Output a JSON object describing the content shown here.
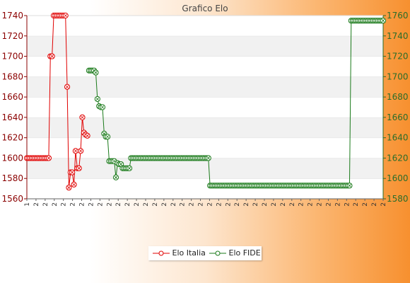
{
  "chart_data": {
    "type": "line",
    "title": "Grafico Elo",
    "left_axis": {
      "ylim": [
        1560,
        1740
      ],
      "ticks": [
        1560,
        1580,
        1600,
        1620,
        1640,
        1660,
        1680,
        1700,
        1720,
        1740
      ]
    },
    "right_axis": {
      "ylim": [
        1580,
        1760
      ],
      "ticks": [
        1580,
        1600,
        1620,
        1640,
        1660,
        1680,
        1700,
        1720,
        1740,
        1760
      ]
    },
    "x_tick_labels": [
      "1",
      "2",
      "2",
      "2",
      "2",
      "2",
      "2",
      "2",
      "2",
      "2",
      "2",
      "2",
      "2",
      "2",
      "2",
      "2",
      "2",
      "2",
      "2",
      "2",
      "2",
      "2",
      "2",
      "2",
      "2",
      "2",
      "2",
      "2",
      "2",
      "2",
      "2",
      "2",
      "2",
      "2",
      "2",
      "2",
      "2",
      "2",
      "2",
      "2"
    ],
    "grid": true,
    "legend_position": "bottom",
    "colors": {
      "italia": "#e00000",
      "fide": "#1a7a1a",
      "band": "#f1f1f1"
    },
    "series": [
      {
        "name": "Elo Italia",
        "axis": "left",
        "values": [
          1600,
          1600,
          1600,
          1600,
          1600,
          1600,
          1600,
          1600,
          1600,
          1600,
          1600,
          1600,
          1600,
          1600,
          1700,
          1700,
          1740,
          1740,
          1740,
          1740,
          1740,
          1740,
          1740,
          1740,
          1670,
          1571,
          1586,
          1586,
          1574,
          1607,
          1590,
          1590,
          1607,
          1640,
          1625,
          1623,
          1622
        ]
      },
      {
        "name": "Elo FIDE",
        "axis": "right",
        "start_index": 37,
        "values": [
          1706,
          1706,
          1706,
          1706,
          1704,
          1678,
          1671,
          1670,
          1670,
          1644,
          1641,
          1641,
          1617,
          1617,
          1617,
          1617,
          1601,
          1615,
          1614,
          1614,
          1610,
          1610,
          1610,
          1610,
          1610,
          1620,
          1620,
          1620,
          1620,
          1620,
          1620,
          1620,
          1620,
          1620,
          1620,
          1620,
          1620,
          1620,
          1620,
          1620,
          1620,
          1620,
          1620,
          1620,
          1620,
          1620,
          1620,
          1620,
          1620,
          1620,
          1620,
          1620,
          1620,
          1620,
          1620,
          1620,
          1620,
          1620,
          1620,
          1620,
          1620,
          1620,
          1620,
          1620,
          1620,
          1620,
          1620,
          1620,
          1620,
          1620,
          1620,
          1620,
          1593,
          1593,
          1593,
          1593,
          1593,
          1593,
          1593,
          1593,
          1593,
          1593,
          1593,
          1593,
          1593,
          1593,
          1593,
          1593,
          1593,
          1593,
          1593,
          1593,
          1593,
          1593,
          1593,
          1593,
          1593,
          1593,
          1593,
          1593,
          1593,
          1593,
          1593,
          1593,
          1593,
          1593,
          1593,
          1593,
          1593,
          1593,
          1593,
          1593,
          1593,
          1593,
          1593,
          1593,
          1593,
          1593,
          1593,
          1593,
          1593,
          1593,
          1593,
          1593,
          1593,
          1593,
          1593,
          1593,
          1593,
          1593,
          1593,
          1593,
          1593,
          1593,
          1593,
          1593,
          1593,
          1593,
          1593,
          1593,
          1593,
          1593,
          1593,
          1593,
          1593,
          1593,
          1593,
          1593,
          1593,
          1593,
          1593,
          1593,
          1593,
          1593,
          1593,
          1593,
          1755,
          1755,
          1755,
          1755,
          1755,
          1755,
          1755,
          1755,
          1755,
          1755,
          1755,
          1755,
          1755,
          1755,
          1755,
          1755,
          1755,
          1755,
          1755,
          1755
        ]
      }
    ]
  }
}
